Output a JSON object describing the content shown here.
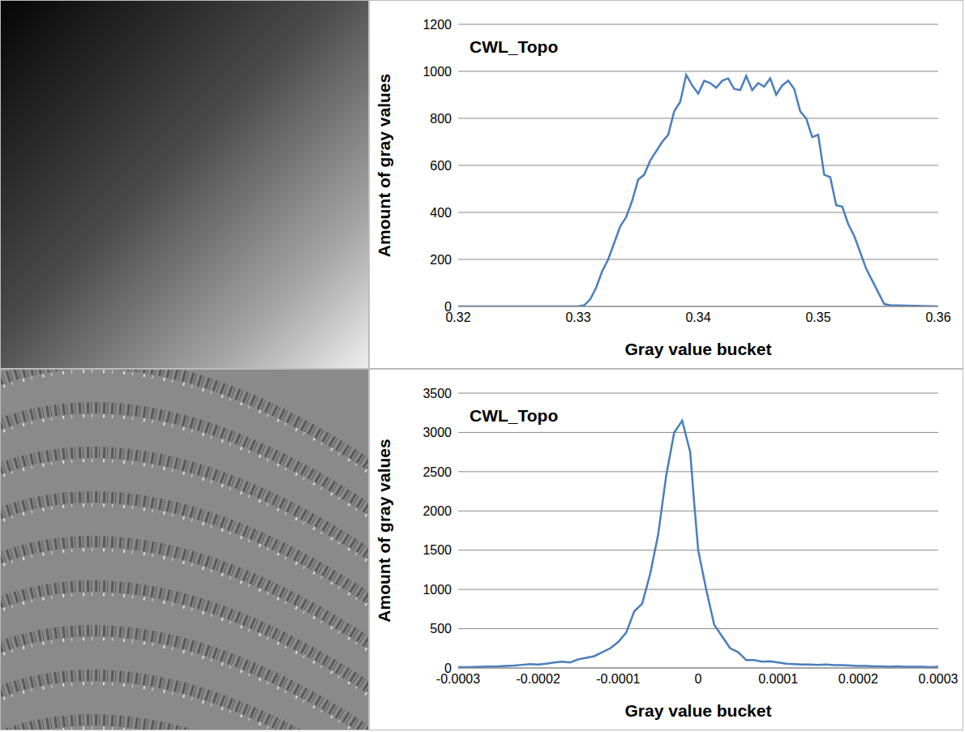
{
  "chart_data": [
    {
      "type": "line",
      "title": "CWL_Topo",
      "x_label": "Gray value bucket",
      "y_label": "Amount of gray values",
      "color": "#4a7ebb",
      "grid": true,
      "xlim": [
        0.32,
        0.36
      ],
      "xticks": [
        0.32,
        0.33,
        0.34,
        0.35,
        0.36
      ],
      "ylim": [
        0,
        1200
      ],
      "yticks": [
        0,
        200,
        400,
        600,
        800,
        1000,
        1200
      ],
      "x": [
        0.32,
        0.325,
        0.33,
        0.3305,
        0.331,
        0.3315,
        0.332,
        0.3325,
        0.333,
        0.3335,
        0.334,
        0.3345,
        0.335,
        0.3355,
        0.336,
        0.3365,
        0.337,
        0.3375,
        0.338,
        0.3385,
        0.339,
        0.3395,
        0.34,
        0.3405,
        0.341,
        0.3415,
        0.342,
        0.3425,
        0.343,
        0.3435,
        0.344,
        0.3445,
        0.345,
        0.3455,
        0.346,
        0.3465,
        0.347,
        0.3475,
        0.348,
        0.3485,
        0.349,
        0.3495,
        0.35,
        0.3505,
        0.351,
        0.3515,
        0.352,
        0.3525,
        0.353,
        0.3535,
        0.354,
        0.3545,
        0.355,
        0.3555,
        0.356,
        0.36
      ],
      "values": [
        0,
        0,
        0,
        5,
        30,
        80,
        150,
        200,
        270,
        340,
        380,
        450,
        540,
        560,
        620,
        660,
        700,
        730,
        830,
        870,
        985,
        940,
        905,
        960,
        950,
        930,
        960,
        970,
        925,
        920,
        980,
        920,
        950,
        935,
        970,
        900,
        940,
        960,
        925,
        830,
        800,
        720,
        730,
        560,
        550,
        430,
        425,
        350,
        300,
        230,
        160,
        110,
        60,
        10,
        5,
        0
      ]
    },
    {
      "type": "line",
      "title": "CWL_Topo",
      "x_label": "Gray value bucket",
      "y_label": "Amount of gray values",
      "color": "#4a7ebb",
      "grid": true,
      "xlim": [
        -0.0003,
        0.0003
      ],
      "xticks": [
        -0.0003,
        -0.0002,
        -0.0001,
        0,
        0.0001,
        0.0002,
        0.0003
      ],
      "ylim": [
        0,
        3500
      ],
      "yticks": [
        0,
        500,
        1000,
        1500,
        2000,
        2500,
        3000,
        3500
      ],
      "x": [
        -0.0003,
        -0.00029,
        -0.00028,
        -0.00027,
        -0.00026,
        -0.00025,
        -0.00024,
        -0.00023,
        -0.00022,
        -0.00021,
        -0.0002,
        -0.00019,
        -0.00018,
        -0.00017,
        -0.00016,
        -0.00015,
        -0.00014,
        -0.00013,
        -0.00012,
        -0.00011,
        -0.0001,
        -9e-05,
        -8e-05,
        -7e-05,
        -6e-05,
        -5e-05,
        -4e-05,
        -3e-05,
        -2e-05,
        -1e-05,
        -5e-06,
        0,
        1e-05,
        2e-05,
        3e-05,
        4e-05,
        5e-05,
        6e-05,
        7e-05,
        8e-05,
        9e-05,
        0.0001,
        0.00011,
        0.00012,
        0.00013,
        0.00014,
        0.00015,
        0.00016,
        0.00017,
        0.00018,
        0.00019,
        0.0002,
        0.00021,
        0.00022,
        0.00023,
        0.00024,
        0.00025,
        0.00026,
        0.00027,
        0.00028,
        0.00029,
        0.0003
      ],
      "values": [
        10,
        10,
        12,
        15,
        18,
        20,
        25,
        30,
        40,
        50,
        45,
        55,
        70,
        80,
        70,
        110,
        130,
        150,
        200,
        250,
        330,
        450,
        720,
        820,
        1200,
        1700,
        2450,
        3000,
        3150,
        2750,
        2100,
        1500,
        1000,
        550,
        400,
        250,
        200,
        100,
        100,
        80,
        85,
        70,
        55,
        50,
        45,
        45,
        40,
        45,
        35,
        35,
        30,
        25,
        25,
        20,
        20,
        15,
        20,
        15,
        15,
        15,
        10,
        15
      ]
    }
  ]
}
